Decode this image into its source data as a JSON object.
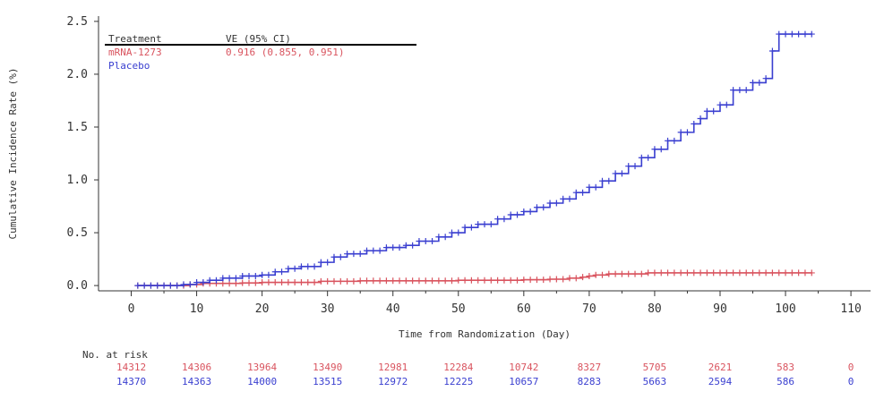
{
  "chart_data": {
    "type": "line",
    "step": true,
    "xlabel": "Time from Randomization (Day)",
    "ylabel": "Cumulative Incidence Rate (%)",
    "xlim": [
      -5,
      113
    ],
    "ylim": [
      -0.05,
      2.55
    ],
    "xticks": [
      "0",
      "10",
      "20",
      "30",
      "40",
      "50",
      "60",
      "70",
      "80",
      "90",
      "100",
      "110"
    ],
    "yticks": [
      "0.0",
      "0.5",
      "1.0",
      "1.5",
      "2.0",
      "2.5"
    ],
    "legend": {
      "header_treatment": "Treatment",
      "header_ve": "VE (95% CI)",
      "ve_value": "0.916 (0.855, 0.951)",
      "placement": "top-left"
    },
    "series": [
      {
        "name": "mRNA-1273",
        "color": "#d9545f",
        "x": [
          1,
          5,
          9,
          11,
          14,
          17,
          20,
          25,
          29,
          35,
          40,
          45,
          50,
          55,
          60,
          64,
          67,
          69,
          70,
          71,
          73,
          79,
          85,
          104
        ],
        "y": [
          0.0,
          0.0,
          0.01,
          0.02,
          0.02,
          0.025,
          0.03,
          0.03,
          0.04,
          0.045,
          0.045,
          0.045,
          0.05,
          0.05,
          0.055,
          0.06,
          0.07,
          0.08,
          0.09,
          0.1,
          0.11,
          0.12,
          0.12,
          0.12
        ]
      },
      {
        "name": "Placebo",
        "color": "#3a3fd0",
        "x": [
          1,
          5,
          8,
          10,
          12,
          14,
          17,
          20,
          22,
          24,
          26,
          29,
          31,
          33,
          36,
          39,
          42,
          44,
          47,
          49,
          51,
          53,
          56,
          58,
          60,
          62,
          64,
          66,
          68,
          70,
          72,
          74,
          76,
          78,
          80,
          82,
          84,
          86,
          87,
          88,
          90,
          92,
          95,
          97,
          98,
          99,
          104
        ],
        "y": [
          0.0,
          0.0,
          0.01,
          0.03,
          0.05,
          0.07,
          0.09,
          0.1,
          0.13,
          0.16,
          0.18,
          0.22,
          0.27,
          0.3,
          0.33,
          0.36,
          0.38,
          0.42,
          0.46,
          0.5,
          0.55,
          0.58,
          0.63,
          0.67,
          0.7,
          0.74,
          0.78,
          0.82,
          0.88,
          0.93,
          0.99,
          1.06,
          1.13,
          1.21,
          1.29,
          1.37,
          1.45,
          1.53,
          1.58,
          1.65,
          1.71,
          1.85,
          1.92,
          1.96,
          2.22,
          2.38,
          2.38
        ]
      }
    ],
    "risk_table": {
      "title": "No. at risk",
      "days": [
        0,
        10,
        20,
        30,
        40,
        50,
        60,
        70,
        80,
        90,
        100,
        110
      ],
      "rows": [
        {
          "name": "mRNA-1273",
          "color": "#d9545f",
          "values": [
            "14312",
            "14306",
            "13964",
            "13490",
            "12981",
            "12284",
            "10742",
            "8327",
            "5705",
            "2621",
            "583",
            "0"
          ]
        },
        {
          "name": "Placebo",
          "color": "#3a3fd0",
          "values": [
            "14370",
            "14363",
            "14000",
            "13515",
            "12972",
            "12225",
            "10657",
            "8283",
            "5663",
            "2594",
            "586",
            "0"
          ]
        }
      ]
    }
  }
}
